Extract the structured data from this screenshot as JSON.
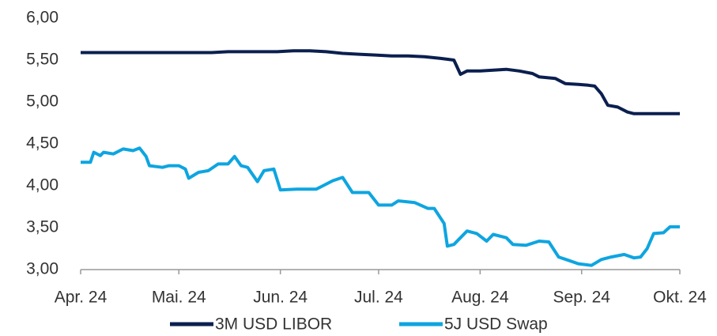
{
  "chart_data": {
    "type": "line",
    "xlim": [
      0,
      183
    ],
    "xticks": [
      {
        "value": 0,
        "label": "Apr. 24"
      },
      {
        "value": 30,
        "label": "Mai. 24"
      },
      {
        "value": 61,
        "label": "Jun. 24"
      },
      {
        "value": 91,
        "label": "Jul. 24"
      },
      {
        "value": 122,
        "label": "Aug. 24"
      },
      {
        "value": 153,
        "label": "Sep. 24"
      },
      {
        "value": 183,
        "label": "Okt. 24"
      }
    ],
    "ylim": [
      3,
      6
    ],
    "yticks": [
      {
        "value": 3,
        "label": "3,00"
      },
      {
        "value": 3.5,
        "label": "3,50"
      },
      {
        "value": 4,
        "label": "4,00"
      },
      {
        "value": 4.5,
        "label": "4,50"
      },
      {
        "value": 5,
        "label": "5,00"
      },
      {
        "value": 5.5,
        "label": "5,50"
      },
      {
        "value": 6,
        "label": "6,00"
      }
    ],
    "legend": "bottom",
    "series": [
      {
        "name": "3M USD LIBOR",
        "color": "#0b1f4f",
        "x": [
          0,
          5,
          10,
          15,
          20,
          25,
          30,
          35,
          40,
          45,
          50,
          55,
          60,
          65,
          70,
          75,
          80,
          85,
          90,
          95,
          100,
          105,
          110,
          114,
          116,
          118,
          122,
          126,
          130,
          134,
          138,
          140,
          145,
          148,
          152,
          155,
          157,
          159,
          161,
          164,
          167,
          169,
          175,
          183
        ],
        "values": [
          5.59,
          5.59,
          5.59,
          5.59,
          5.59,
          5.59,
          5.59,
          5.59,
          5.59,
          5.6,
          5.6,
          5.6,
          5.6,
          5.61,
          5.61,
          5.6,
          5.58,
          5.57,
          5.56,
          5.55,
          5.55,
          5.54,
          5.52,
          5.5,
          5.33,
          5.37,
          5.37,
          5.38,
          5.39,
          5.37,
          5.34,
          5.3,
          5.28,
          5.22,
          5.21,
          5.2,
          5.19,
          5.1,
          4.96,
          4.94,
          4.88,
          4.86,
          4.86,
          4.86
        ]
      },
      {
        "name": "5J USD Swap",
        "color": "#0ea5e0",
        "x": [
          0,
          3,
          4,
          6,
          7,
          10,
          13,
          16,
          18,
          20,
          21,
          25,
          27,
          30,
          32,
          33,
          36,
          39,
          42,
          45,
          47,
          49,
          51,
          54,
          56,
          59,
          61,
          66,
          70,
          72,
          74,
          77,
          80,
          83,
          88,
          91,
          95,
          97,
          102,
          106,
          108,
          111,
          112,
          114,
          118,
          121,
          124,
          126,
          130,
          132,
          136,
          140,
          143,
          146,
          149,
          152,
          156,
          159,
          162,
          166,
          169,
          171,
          173,
          175,
          178,
          180,
          183
        ],
        "values": [
          4.28,
          4.28,
          4.4,
          4.36,
          4.4,
          4.38,
          4.44,
          4.42,
          4.45,
          4.35,
          4.24,
          4.22,
          4.24,
          4.24,
          4.2,
          4.09,
          4.16,
          4.18,
          4.26,
          4.26,
          4.35,
          4.24,
          4.22,
          4.05,
          4.18,
          4.2,
          3.95,
          3.96,
          3.96,
          3.96,
          4.0,
          4.06,
          4.1,
          3.92,
          3.92,
          3.77,
          3.77,
          3.82,
          3.8,
          3.73,
          3.73,
          3.55,
          3.28,
          3.3,
          3.46,
          3.43,
          3.34,
          3.42,
          3.38,
          3.3,
          3.29,
          3.34,
          3.33,
          3.15,
          3.11,
          3.07,
          3.05,
          3.12,
          3.15,
          3.18,
          3.14,
          3.15,
          3.25,
          3.43,
          3.44,
          3.51,
          3.51
        ]
      }
    ]
  }
}
